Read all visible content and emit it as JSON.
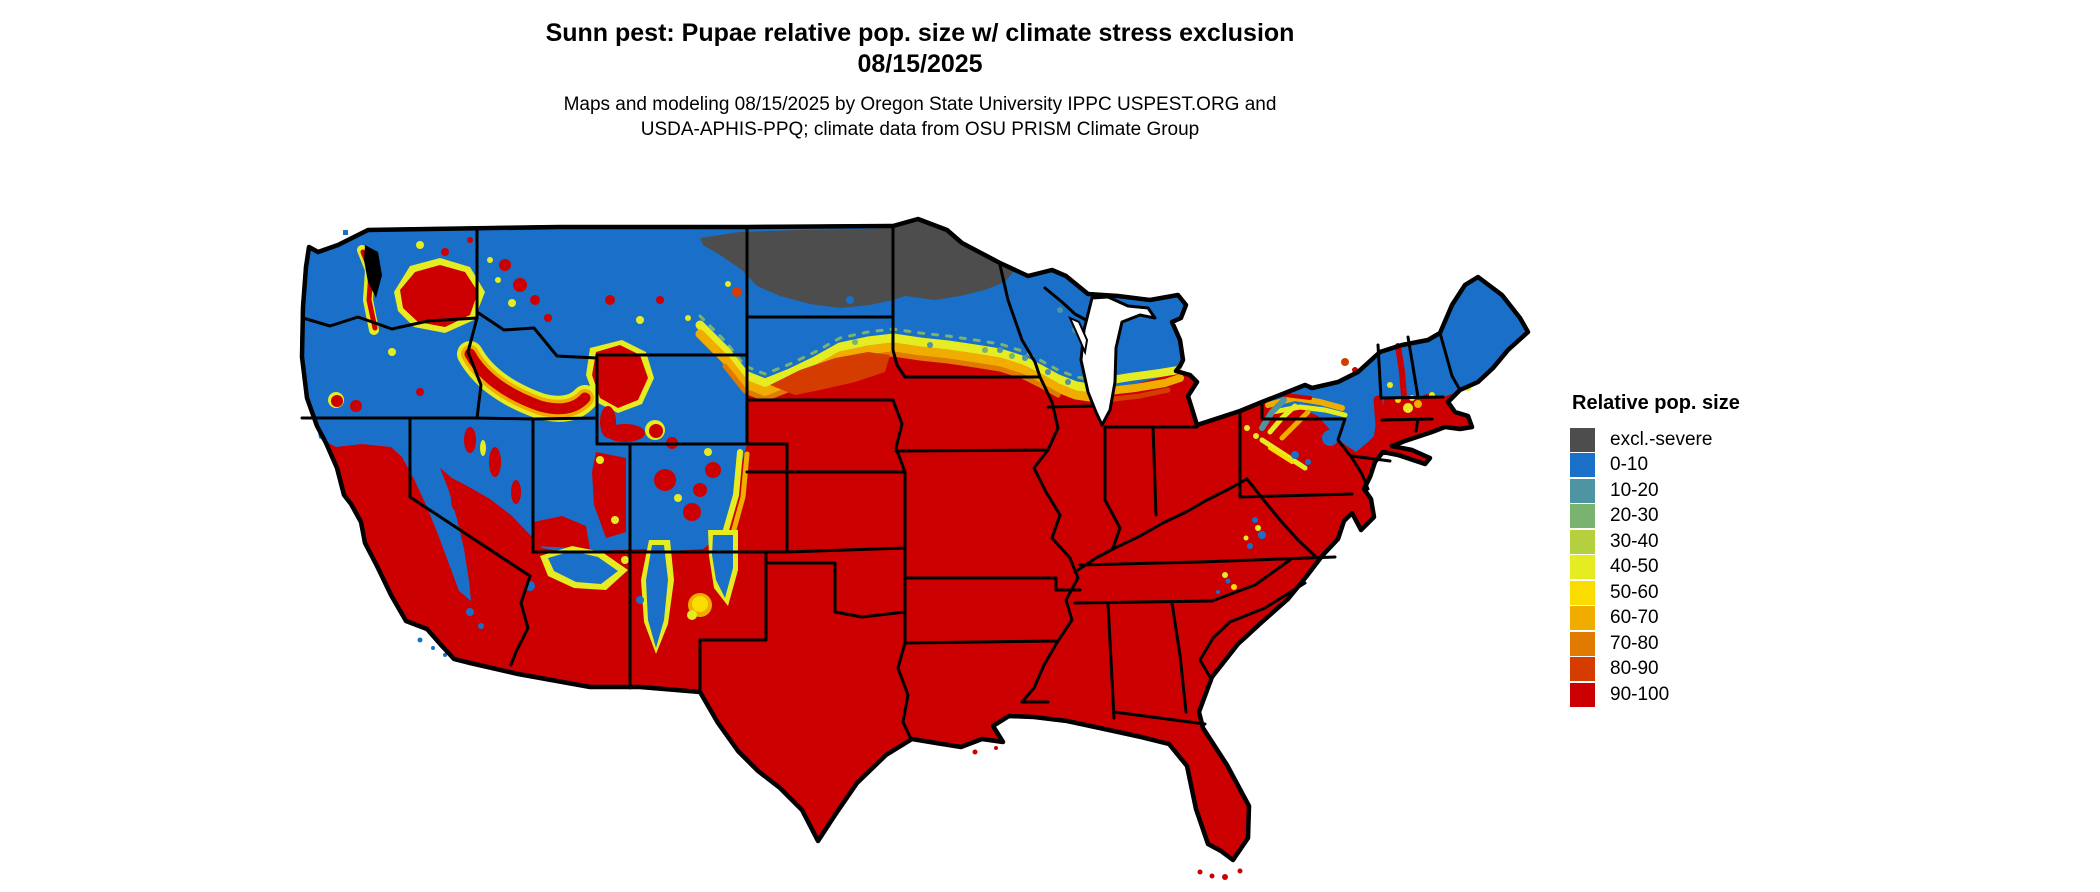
{
  "title": {
    "line1": "Sunn pest: Pupae relative pop. size w/ climate stress exclusion",
    "line2": "08/15/2025"
  },
  "subtitle": {
    "line1": "Maps and modeling 08/15/2025 by Oregon State University IPPC USPEST.ORG and",
    "line2": "USDA-APHIS-PPQ; climate data from OSU PRISM Climate Group"
  },
  "legend": {
    "title": "Relative pop. size",
    "entries": [
      {
        "key": "gray",
        "label": "excl.-severe",
        "color": "#4d4d4d"
      },
      {
        "key": "blue",
        "label": "0-10",
        "color": "#1a70c8"
      },
      {
        "key": "teal",
        "label": "10-20",
        "color": "#4e94a2"
      },
      {
        "key": "green",
        "label": "20-30",
        "color": "#7ab370"
      },
      {
        "key": "yellowgreen",
        "label": "30-40",
        "color": "#b5d03e"
      },
      {
        "key": "yellow",
        "label": "40-50",
        "color": "#e6ec22"
      },
      {
        "key": "gold",
        "label": "50-60",
        "color": "#fadc00"
      },
      {
        "key": "orange",
        "label": "60-70",
        "color": "#f0ad00"
      },
      {
        "key": "darkorange",
        "label": "70-80",
        "color": "#e07a00"
      },
      {
        "key": "redorange",
        "label": "80-90",
        "color": "#d53d00"
      },
      {
        "key": "90-100",
        "label": "90-100",
        "color": "#cc0000"
      }
    ]
  },
  "map": {
    "region": "Contiguous United States",
    "kind": "raster choropleth with state borders",
    "border_color": "#000000",
    "water_color": "#ffffff",
    "background_color": "#ffffff"
  }
}
